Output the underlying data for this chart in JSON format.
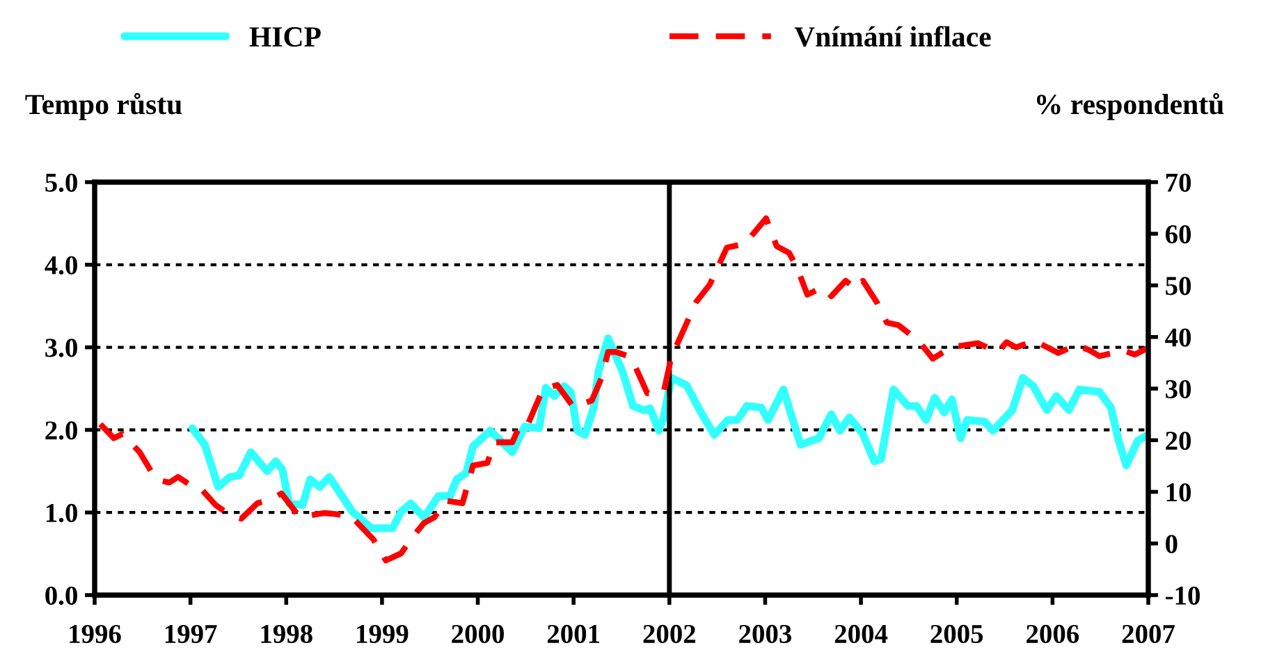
{
  "chart_data": {
    "type": "line",
    "xlim": [
      1996,
      2007
    ],
    "xticks": [
      1996,
      1997,
      1998,
      1999,
      2000,
      2001,
      2002,
      2003,
      2004,
      2005,
      2006,
      2007
    ],
    "ylim": [
      0,
      5
    ],
    "yticks": [
      {
        "value": 0,
        "label": "0.0"
      },
      {
        "value": 1,
        "label": "1.0"
      },
      {
        "value": 2,
        "label": "2.0"
      },
      {
        "value": 3,
        "label": "3.0"
      },
      {
        "value": 4,
        "label": "4.0"
      },
      {
        "value": 5,
        "label": "5.0"
      }
    ],
    "y2lim": [
      -10,
      70
    ],
    "y2ticks": [
      -10,
      0,
      10,
      20,
      30,
      40,
      50,
      60,
      70
    ],
    "ylabel": "Tempo růstu",
    "y2label": "% respondentů",
    "grid": "y",
    "legend": "top",
    "ref_lines": [
      {
        "axis": "x",
        "value": 2002,
        "color": "#000000",
        "line_style": "solid"
      }
    ],
    "series": [
      {
        "name": "HICP",
        "color": "#33ffff",
        "line_style": "solid",
        "x": [
          1997.02,
          1997.15,
          1997.29,
          1997.41,
          1997.51,
          1997.63,
          1997.8,
          1997.89,
          1997.96,
          1998.03,
          1998.17,
          1998.25,
          1998.35,
          1998.45,
          1998.69,
          1998.89,
          1999.11,
          1999.2,
          1999.3,
          1999.44,
          1999.59,
          1999.71,
          1999.78,
          1999.88,
          1999.95,
          2000.13,
          2000.36,
          2000.49,
          2000.64,
          2000.71,
          2000.8,
          2000.9,
          2000.97,
          2001.04,
          2001.12,
          2001.21,
          2001.26,
          2001.36,
          2001.51,
          2001.62,
          2001.73,
          2001.8,
          2001.89,
          2001.94,
          2002.02,
          2002.18,
          2002.33,
          2002.47,
          2002.61,
          2002.71,
          2002.81,
          2002.96,
          2003.03,
          2003.19,
          2003.37,
          2003.56,
          2003.69,
          2003.78,
          2003.88,
          2004.02,
          2004.14,
          2004.21,
          2004.34,
          2004.49,
          2004.58,
          2004.68,
          2004.77,
          2004.87,
          2004.95,
          2005.04,
          2005.11,
          2005.29,
          2005.38,
          2005.58,
          2005.69,
          2005.8,
          2005.94,
          2006.04,
          2006.17,
          2006.28,
          2006.49,
          2006.61,
          2006.69,
          2006.77,
          2006.89,
          2007.0
        ],
        "values": [
          2.02,
          1.82,
          1.31,
          1.43,
          1.45,
          1.73,
          1.5,
          1.62,
          1.52,
          1.11,
          1.09,
          1.4,
          1.31,
          1.43,
          1.01,
          0.81,
          0.81,
          1.01,
          1.11,
          0.94,
          1.2,
          1.2,
          1.4,
          1.48,
          1.8,
          1.99,
          1.73,
          2.04,
          2.02,
          2.51,
          2.41,
          2.53,
          2.46,
          1.99,
          1.94,
          2.27,
          2.71,
          3.11,
          2.71,
          2.29,
          2.24,
          2.26,
          1.99,
          2.15,
          2.63,
          2.54,
          2.21,
          1.94,
          2.12,
          2.12,
          2.29,
          2.27,
          2.12,
          2.49,
          1.82,
          1.9,
          2.19,
          1.99,
          2.15,
          1.95,
          1.62,
          1.65,
          2.49,
          2.29,
          2.29,
          2.12,
          2.39,
          2.21,
          2.37,
          1.9,
          2.12,
          2.1,
          1.99,
          2.24,
          2.63,
          2.53,
          2.24,
          2.41,
          2.24,
          2.49,
          2.46,
          2.27,
          1.87,
          1.57,
          1.87,
          1.94
        ]
      },
      {
        "name": "Vnímání inflace",
        "color": "#ff0000",
        "line_style": "dashed",
        "axis": "y2",
        "x": [
          1996.06,
          1996.2,
          1996.29,
          1996.47,
          1996.64,
          1996.78,
          1996.87,
          1997.0,
          1997.09,
          1997.26,
          1997.38,
          1997.53,
          1997.7,
          1997.85,
          1997.95,
          1998.14,
          1998.4,
          1998.67,
          1998.91,
          1999.04,
          1999.2,
          1999.3,
          1999.44,
          1999.55,
          1999.66,
          1999.84,
          1999.95,
          2000.1,
          2000.17,
          2000.36,
          2000.46,
          2000.53,
          2000.68,
          2000.83,
          2001.0,
          2001.19,
          2001.29,
          2001.36,
          2001.44,
          2001.6,
          2001.77,
          2001.94,
          2002.02,
          2002.13,
          2002.28,
          2002.42,
          2002.6,
          2002.79,
          2003.01,
          2003.12,
          2003.25,
          2003.33,
          2003.44,
          2003.56,
          2003.62,
          2003.69,
          2003.84,
          2003.95,
          2004.02,
          2004.17,
          2004.27,
          2004.39,
          2004.6,
          2004.75,
          2004.94,
          2005.22,
          2005.43,
          2005.52,
          2005.62,
          2005.81,
          2006.06,
          2006.25,
          2006.39,
          2006.49,
          2006.74,
          2006.86,
          2007.0
        ],
        "values": [
          23.1,
          20.4,
          21.2,
          17.7,
          12.4,
          11.8,
          12.9,
          11.3,
          11.0,
          7.5,
          5.9,
          4.8,
          7.8,
          8.6,
          9.7,
          5.1,
          5.9,
          5.4,
          0.8,
          -3.3,
          -1.9,
          0.8,
          4.0,
          5.1,
          8.3,
          7.8,
          15.1,
          15.6,
          19.6,
          19.6,
          23.7,
          23.4,
          29.9,
          30.7,
          26.4,
          27.7,
          32.0,
          37.1,
          37.1,
          36.1,
          29.1,
          29.3,
          36.1,
          40.6,
          46.8,
          50.1,
          57.3,
          58.1,
          63.0,
          57.6,
          56.3,
          53.6,
          48.2,
          49.3,
          49.5,
          47.9,
          50.9,
          49.3,
          50.9,
          46.6,
          42.8,
          42.3,
          39.3,
          35.8,
          38.0,
          38.8,
          37.1,
          39.0,
          38.0,
          39.3,
          36.9,
          38.5,
          37.4,
          36.3,
          37.4,
          36.6,
          37.9
        ]
      }
    ]
  }
}
